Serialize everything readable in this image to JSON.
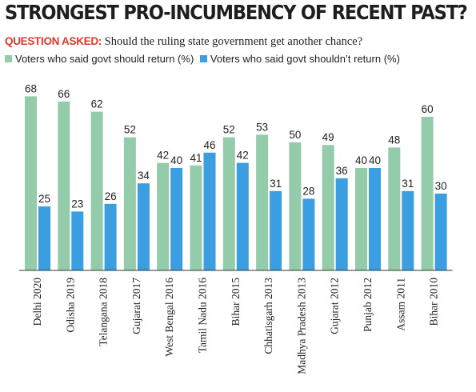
{
  "title": "STRONGEST PRO-INCUMBENCY OF RECENT PAST?",
  "question": {
    "label": "QUESTION ASKED:",
    "text": "Should the ruling state government get another chance?"
  },
  "colors": {
    "green": "#93cbab",
    "blue": "#3a9ee0",
    "axis": "#333333"
  },
  "chart_data": {
    "type": "bar",
    "categories": [
      "Delhi 2020",
      "Odisha 2019",
      "Telangana 2018",
      "Gujarat 2017",
      "West Bengal 2016",
      "Tamil Nadu 2016",
      "Bihar 2015",
      "Chhatisgarh 2013",
      "Madhya Pradesh 2013",
      "Gujarat 2012",
      "Punjab 2012",
      "Assam 2011",
      "Bihar 2010"
    ],
    "series": [
      {
        "name": "Voters who said govt should return (%)",
        "values": [
          68,
          66,
          62,
          52,
          42,
          41,
          52,
          53,
          50,
          49,
          40,
          48,
          60
        ]
      },
      {
        "name": "Voters who said govt shouldn’t return (%)",
        "values": [
          25,
          23,
          26,
          34,
          40,
          46,
          42,
          31,
          28,
          36,
          40,
          31,
          30
        ]
      }
    ],
    "ylim": [
      0,
      70
    ],
    "legend": "top-left",
    "grid": false
  }
}
